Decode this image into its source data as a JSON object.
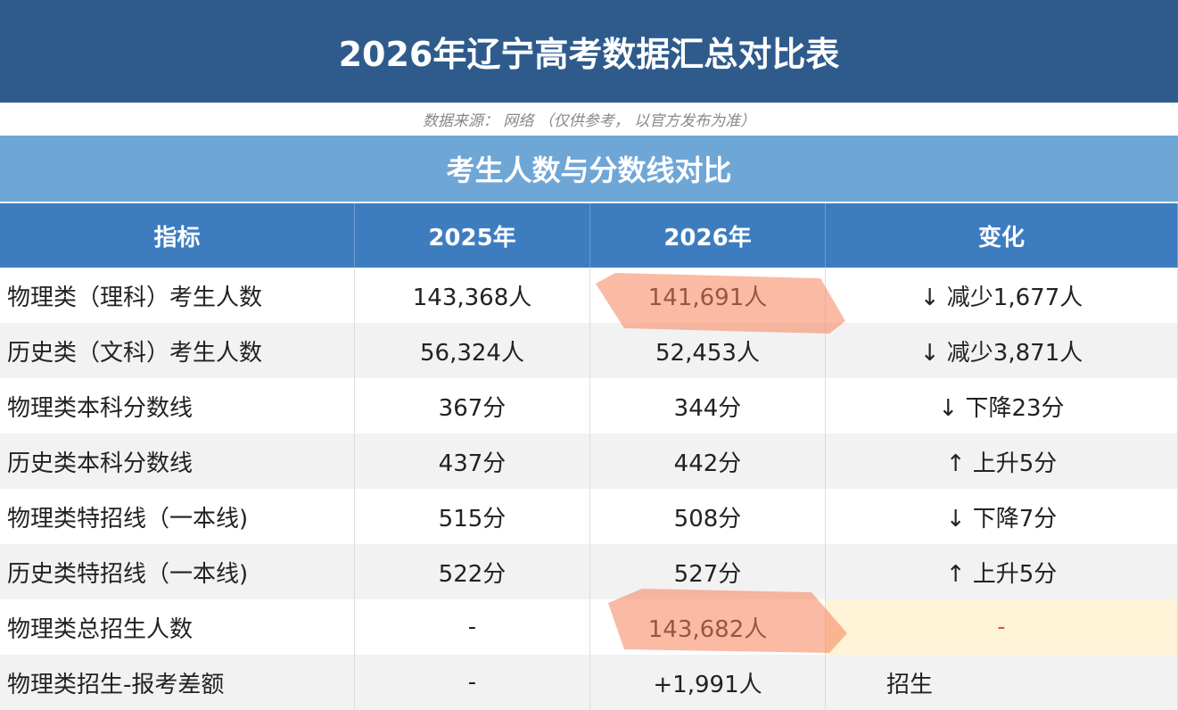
{
  "header": {
    "title": "2026年辽宁高考数据汇总对比表",
    "source": "数据来源： 网络 （仅供参考， 以官方发布为准）"
  },
  "section_title": "考生人数与分数线对比",
  "table": {
    "columns": [
      "指标",
      "2025年",
      "2026年",
      "变化"
    ],
    "rows": [
      [
        "物理类（理科）考生人数",
        "143,368人",
        "141,691人",
        "↓ 减少1,677人"
      ],
      [
        "历史类（文科）考生人数",
        "56,324人",
        "52,453人",
        "↓ 减少3,871人"
      ],
      [
        "物理类本科分数线",
        "367分",
        "344分",
        "↓ 下降23分"
      ],
      [
        "历史类本科分数线",
        "437分",
        "442分",
        "↑ 上升5分"
      ],
      [
        "物理类特招线（一本线)",
        "515分",
        "508分",
        "↓ 下降7分"
      ],
      [
        "历史类特招线（一本线)",
        "522分",
        "527分",
        "↑ 上升5分"
      ],
      [
        "物理类总招生人数",
        "-",
        "143,682人",
        "-"
      ],
      [
        "物理类招生-报考差额",
        "-",
        "+1,991人",
        "招生"
      ]
    ]
  }
}
